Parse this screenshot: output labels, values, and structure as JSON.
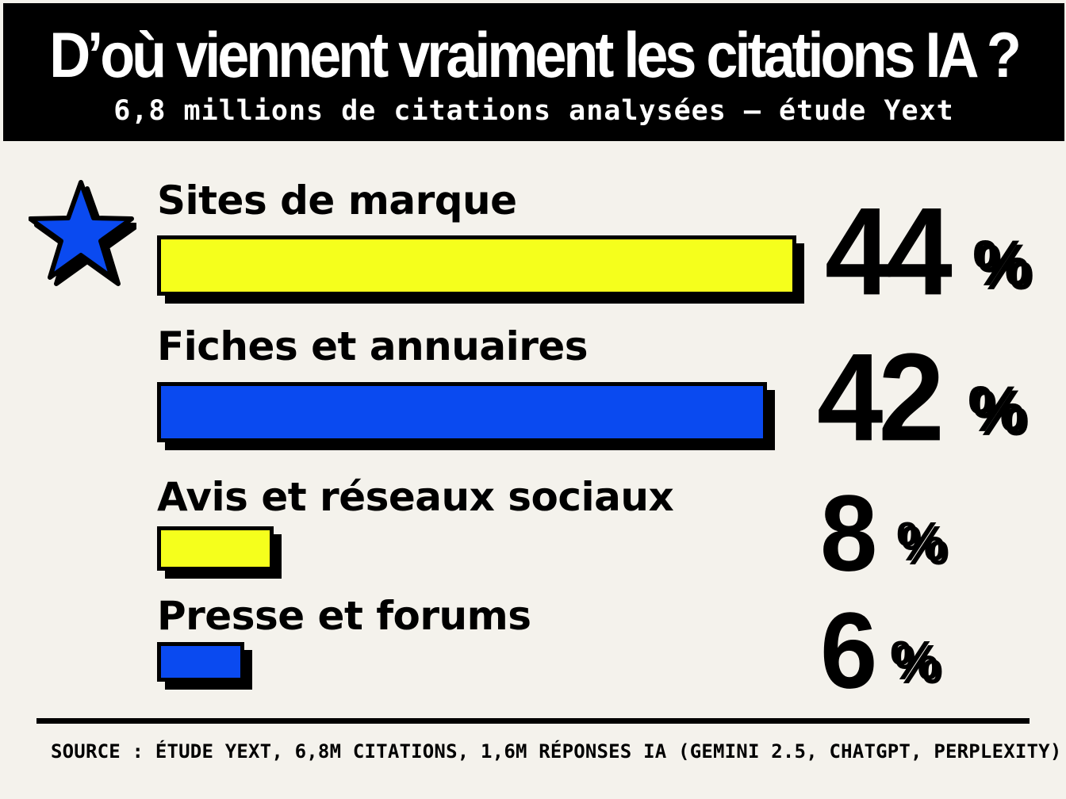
{
  "header": {
    "title": "D’où viennent vraiment les citations IA ?",
    "subtitle": "6,8 millions de citations analysées — étude Yext"
  },
  "chart_data": {
    "type": "bar",
    "orientation": "horizontal",
    "categories": [
      "Sites de marque",
      "Fiches et annuaires",
      "Avis et réseaux sociaux",
      "Presse et forums"
    ],
    "values": [
      44,
      42,
      8,
      6
    ],
    "value_labels": [
      "44",
      "42",
      "8",
      "6"
    ],
    "unit": "%",
    "bar_colors": [
      "#f5ff1c",
      "#0a4af0",
      "#f5ff1c",
      "#0a4af0"
    ],
    "highlight": {
      "index": 0,
      "icon": "star-icon",
      "color": "#0a4af0"
    },
    "title": "D’où viennent vraiment les citations IA ?",
    "xlabel": "",
    "ylabel": "",
    "xlim": [
      0,
      44
    ],
    "grid": false,
    "legend": "none"
  },
  "footer": {
    "source": "SOURCE : ÉTUDE YEXT, 6,8M CITATIONS, 1,6M RÉPONSES IA (GEMINI 2.5, CHATGPT, PERPLEXITY)"
  }
}
